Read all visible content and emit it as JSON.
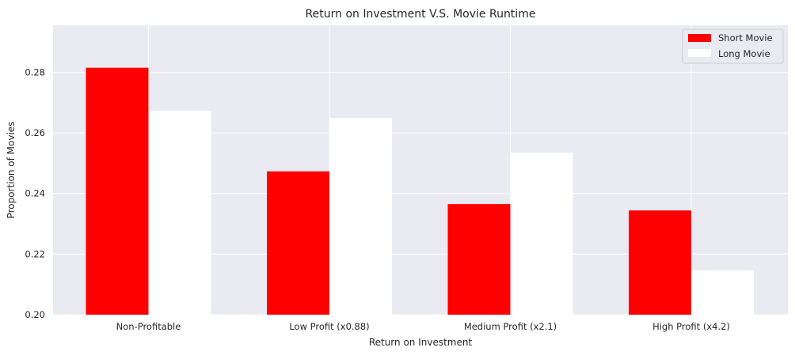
{
  "chart_data": {
    "type": "bar",
    "title": "Return on Investment V.S. Movie Runtime",
    "xlabel": "Return on Investment",
    "ylabel": "Proportion of Movies",
    "categories": [
      "Non-Profitable",
      "Low Profit (x0.88)",
      "Medium Profit (x2.1)",
      "High Profit (x4.2)"
    ],
    "series": [
      {
        "name": "Short Movie",
        "color": "#ff0000",
        "values": [
          0.2815,
          0.2473,
          0.2365,
          0.2344
        ]
      },
      {
        "name": "Long Movie",
        "color": "#ffffff",
        "values": [
          0.2673,
          0.2649,
          0.2535,
          0.2147
        ]
      }
    ],
    "ylim": [
      0.2,
      0.2955
    ],
    "yticks": [
      0.2,
      0.22,
      0.24,
      0.26,
      0.28
    ],
    "ytick_labels": [
      "0.20",
      "0.22",
      "0.24",
      "0.26",
      "0.28"
    ],
    "grid": true,
    "legend_position": "top-right",
    "plot_background": "#eaeaf2"
  }
}
